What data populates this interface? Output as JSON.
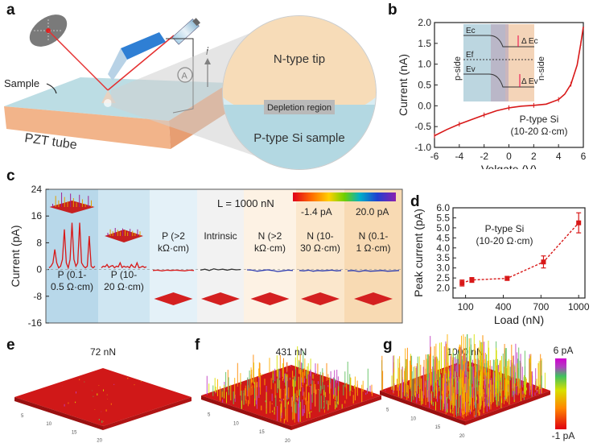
{
  "panel_labels": {
    "a": "a",
    "b": "b",
    "c": "c",
    "d": "d",
    "e": "e",
    "f": "f",
    "g": "g"
  },
  "panel_a": {
    "sample_label": "Sample",
    "pzt_label": "PZT tube",
    "ammeter": "A",
    "current_symbol": "i",
    "tip_label": "N-type tip",
    "depletion_label": "Depletion region",
    "sample_region_label": "P-type Si sample"
  },
  "panel_b": {
    "p_side": "p-side",
    "n_side": "n-side",
    "ec": "Ec",
    "ef": "Ef",
    "ev": "Ev",
    "delta_ec": "Δ Ec",
    "delta_ev": "Δ Ev",
    "annotation_line1": "P-type Si",
    "annotation_line2": "(10-20 Ω·cm)"
  },
  "panel_c": {
    "load_label": "L = 1000 nN",
    "colorbar_min": "-1.4 pA",
    "colorbar_max": "20.0 pA",
    "regions": [
      {
        "line1": "P (0.1-",
        "line2": "0.5 Ω·cm)"
      },
      {
        "line1": "P (10-",
        "line2": "20 Ω·cm)"
      },
      {
        "line1": "P (>2",
        "line2": "kΩ·cm)"
      },
      {
        "line1": "Intrinsic",
        "line2": ""
      },
      {
        "line1": "N (>2",
        "line2": "kΩ·cm)"
      },
      {
        "line1": "N (10-",
        "line2": "30 Ω·cm)"
      },
      {
        "line1": "N (0.1-",
        "line2": "1 Ω·cm)"
      }
    ]
  },
  "panel_d": {
    "annotation_line1": "P-type Si",
    "annotation_line2": "(10-20 Ω·cm)"
  },
  "panel_efg": {
    "e_title": "72 nN",
    "f_title": "431 nN",
    "g_title": "1000 nN",
    "cbar_max": "6 pA",
    "cbar_min": "-1 pA"
  },
  "chart_data": [
    {
      "id": "b",
      "type": "line",
      "xlabel": "Volgate (V)",
      "ylabel": "Current (nA)",
      "xlim": [
        -6,
        6
      ],
      "ylim": [
        -1.0,
        2.0
      ],
      "xticks": [
        -6,
        -4,
        -2,
        0,
        2,
        4,
        6
      ],
      "yticks": [
        -1.0,
        -0.5,
        0.0,
        0.5,
        1.0,
        1.5,
        2.0
      ],
      "x": [
        -6,
        -5,
        -4,
        -3,
        -2,
        -1,
        0,
        1,
        2,
        3,
        4,
        4.5,
        5,
        5.5,
        5.8,
        6
      ],
      "y": [
        -0.72,
        -0.57,
        -0.44,
        -0.33,
        -0.22,
        -0.12,
        -0.05,
        -0.01,
        0.01,
        0.04,
        0.15,
        0.28,
        0.52,
        0.98,
        1.5,
        1.9
      ]
    },
    {
      "id": "c",
      "type": "line",
      "ylabel": "Current (pA)",
      "ylim": [
        -16,
        24
      ],
      "yticks": [
        -16,
        -8,
        0,
        8,
        16,
        24
      ],
      "segments": [
        {
          "name": "P (0.1-0.5 Ω·cm)",
          "values": [
            0.5,
            1,
            2,
            6,
            2,
            0.5,
            1,
            3,
            12,
            2,
            0.5,
            3,
            14,
            3,
            1,
            2,
            14,
            2,
            1,
            0.5,
            1,
            10,
            1,
            0.5,
            1
          ]
        },
        {
          "name": "P (10-20 Ω·cm)",
          "values": [
            0.5,
            1,
            0.8,
            1.5,
            0.6,
            1,
            1.2,
            0.5,
            1,
            0.8,
            2,
            0.6,
            1,
            0.7,
            0.9,
            0.5,
            1.5,
            0.8,
            0.6,
            2,
            0.5,
            0.7,
            1,
            0.6,
            0.8
          ]
        },
        {
          "name": "P (>2 kΩ·cm)",
          "values": [
            -0.3,
            -0.2,
            -0.4,
            -0.2,
            -0.3,
            -0.2,
            -0.3,
            -0.4,
            -0.2,
            -0.3
          ]
        },
        {
          "name": "Intrinsic",
          "values": [
            -0.2,
            0.1,
            -0.3,
            0.2,
            -0.1,
            0.1,
            -0.2,
            0.1,
            -0.1,
            0
          ]
        },
        {
          "name": "N (>2 kΩ·cm)",
          "values": [
            -0.1,
            -0.2,
            -0.5,
            -0.3,
            -0.1,
            -0.3,
            -0.6,
            -0.4,
            -0.2,
            -0.3
          ]
        },
        {
          "name": "N (10-30 Ω·cm)",
          "values": [
            -0.3,
            -0.4,
            -0.2,
            -0.5,
            -0.3,
            -0.4,
            -0.3,
            -0.2,
            -0.4,
            -0.3
          ]
        },
        {
          "name": "N (0.1-1 Ω·cm)",
          "values": [
            -0.4,
            -0.3,
            -0.6,
            -0.3,
            -0.5,
            -0.4,
            -0.3,
            -0.5,
            -0.4,
            -0.3
          ]
        }
      ]
    },
    {
      "id": "d",
      "type": "scatter",
      "xlabel": "Load (nN)",
      "ylabel": "Peak current (pA)",
      "xlim": [
        0,
        1050
      ],
      "ylim": [
        1.5,
        6.0
      ],
      "xticks": [
        100,
        400,
        700,
        1000
      ],
      "yticks": [
        2.0,
        2.5,
        3.0,
        3.5,
        4.0,
        4.5,
        5.0,
        5.5,
        6.0
      ],
      "x": [
        72,
        150,
        431,
        720,
        1000
      ],
      "y": [
        2.25,
        2.4,
        2.48,
        3.3,
        5.25
      ],
      "err": [
        0.15,
        0.12,
        0.1,
        0.3,
        0.5
      ]
    }
  ]
}
